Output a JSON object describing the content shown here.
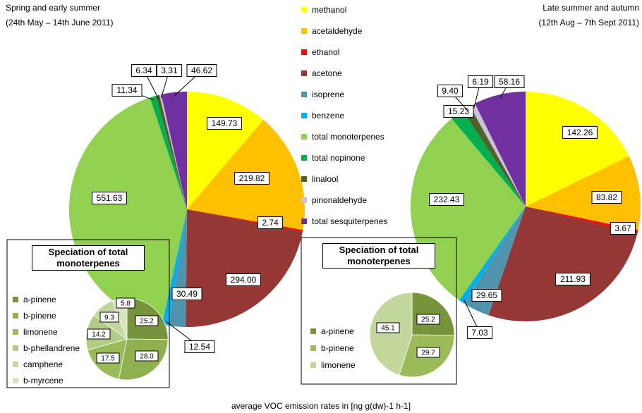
{
  "chart_data": [
    {
      "type": "pie",
      "title": "Spring and early summer",
      "subtitle": "(24th May – 14th June 2011)",
      "categories": [
        "methanol",
        "acetaldehyde",
        "ethanol",
        "acetone",
        "isoprene",
        "benzene",
        "total monoterpenes",
        "total nopinone",
        "linalool",
        "pinonaldehyde",
        "total sesquiterpenes"
      ],
      "colors": [
        "#ffff00",
        "#ffc000",
        "#ff0000",
        "#953735",
        "#4f93ac",
        "#00b0f0",
        "#92d050",
        "#00b050",
        "#4f6228",
        "#ccc0da",
        "#7030a0"
      ],
      "values": [
        149.73,
        219.82,
        2.74,
        294.0,
        30.49,
        12.54,
        551.63,
        11.34,
        6.34,
        3.31,
        46.62
      ],
      "value_labels": [
        "149.73",
        "219.82",
        "2.74",
        "294.00",
        "30.49",
        "12.54",
        "551.63",
        "11.34",
        "6.34",
        "3.31",
        "46.62"
      ],
      "xlabel": "average VOC emission rates in [ng g(dw)-1 h-1]"
    },
    {
      "type": "pie",
      "title": "Late summer and autumn",
      "subtitle": "(12th Aug – 7th Sept 2011)",
      "colors": [
        "#ffff00",
        "#ffc000",
        "#ff0000",
        "#953735",
        "#4f93ac",
        "#00b0f0",
        "#92d050",
        "#00b050",
        "#4f6228",
        "#ccc0da",
        "#7030a0"
      ],
      "values": [
        142.26,
        83.82,
        3.67,
        211.93,
        29.65,
        7.03,
        232.43,
        15.23,
        9.4,
        6.19,
        58.16
      ],
      "value_labels": [
        "142.26",
        "83.82",
        "3.67",
        "211.93",
        "29.65",
        "7.03",
        "232.43",
        "15.23",
        "9.40",
        "6.19",
        "58.16"
      ]
    },
    {
      "type": "pie",
      "title": "Speciation of total monoterpenes",
      "categories": [
        "a-pinene",
        "b-pinene",
        "limonene",
        "b-phellandrene",
        "camphene",
        "b-myrcene"
      ],
      "colors": [
        "#77933c",
        "#8fb04e",
        "#9bbb59",
        "#b3cc85",
        "#c3d69b",
        "#d7e4bd"
      ],
      "values": [
        25.2,
        28.0,
        17.5,
        14.2,
        9.3,
        5.8
      ],
      "value_labels": [
        "25.2",
        "28.0",
        "17.5",
        "14.2",
        "9.3",
        "5.8"
      ]
    },
    {
      "type": "pie",
      "title": "Speciation of total monoterpenes",
      "categories": [
        "a-pinene",
        "b-pinene",
        "limonene"
      ],
      "colors": [
        "#77933c",
        "#9bbb59",
        "#c3d69b"
      ],
      "values": [
        25.2,
        29.7,
        45.1
      ],
      "value_labels": [
        "25.2",
        "29.7",
        "45.1"
      ]
    }
  ]
}
